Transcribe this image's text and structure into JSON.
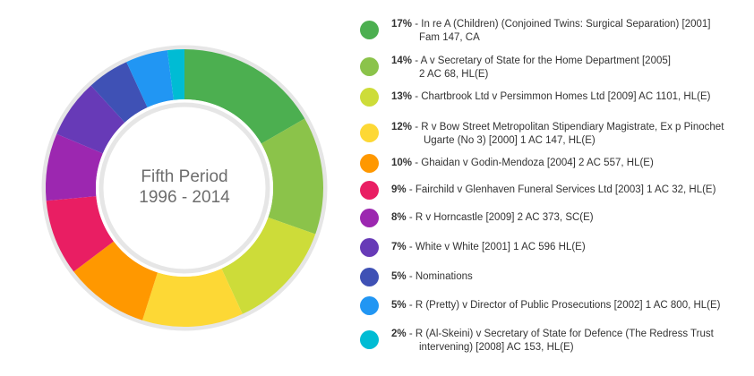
{
  "chart_data": {
    "type": "pie",
    "style": "donut",
    "center_title": "Fifth Period",
    "center_subtitle": "1996 - 2014",
    "slices": [
      {
        "pct_label": "17%",
        "value": 17,
        "line1": " - In re A (Children) (Conjoined Twins: Surgical Separation) [2001]",
        "line2": "Fam 147, CA",
        "color": "#4caf50"
      },
      {
        "pct_label": "14%",
        "value": 14,
        "line1": " - A v Secretary of State for the Home Department [2005]",
        "line2": "2 AC 68, HL(E)",
        "color": "#8bc34a"
      },
      {
        "pct_label": "13%",
        "value": 13,
        "line1": " - Chartbrook Ltd v Persimmon Homes Ltd [2009] AC 1101, HL(E)",
        "line2": "",
        "color": "#cddc39"
      },
      {
        "pct_label": "12%",
        "value": 12,
        "line1": " - R v Bow Street Metropolitan Stipendiary Magistrate, Ex p Pinochet",
        "line2": "Ugarte (No 3) [2000] 1 AC 147, HL(E)",
        "color": "#fdd835"
      },
      {
        "pct_label": "10%",
        "value": 10,
        "line1": " - Ghaidan v Godin-Mendoza [2004] 2 AC 557, HL(E)",
        "line2": "",
        "color": "#ff9800"
      },
      {
        "pct_label": "9%",
        "value": 9,
        "line1": " - Fairchild v Glenhaven Funeral Services Ltd [2003] 1 AC 32, HL(E)",
        "line2": "",
        "color": "#e91e63"
      },
      {
        "pct_label": "8%",
        "value": 8,
        "line1": " - R v Horncastle [2009] 2 AC 373, SC(E)",
        "line2": "",
        "color": "#9c27b0"
      },
      {
        "pct_label": "7%",
        "value": 7,
        "line1": " - White v White [2001] 1 AC 596 HL(E)",
        "line2": "",
        "color": "#673ab7"
      },
      {
        "pct_label": "5%",
        "value": 5,
        "line1": " - Nominations",
        "line2": "",
        "color": "#3f51b5"
      },
      {
        "pct_label": "5%",
        "value": 5,
        "line1": " - R (Pretty) v Director of Public Prosecutions [2002] 1 AC 800, HL(E)",
        "line2": "",
        "color": "#2196f3"
      },
      {
        "pct_label": "2%",
        "value": 2,
        "line1": " - R (Al-Skeini) v Secretary of State for Defence (The Redress Trust",
        "line2": "intervening) [2008] AC 153, HL(E)",
        "color": "#00bcd4"
      }
    ]
  }
}
